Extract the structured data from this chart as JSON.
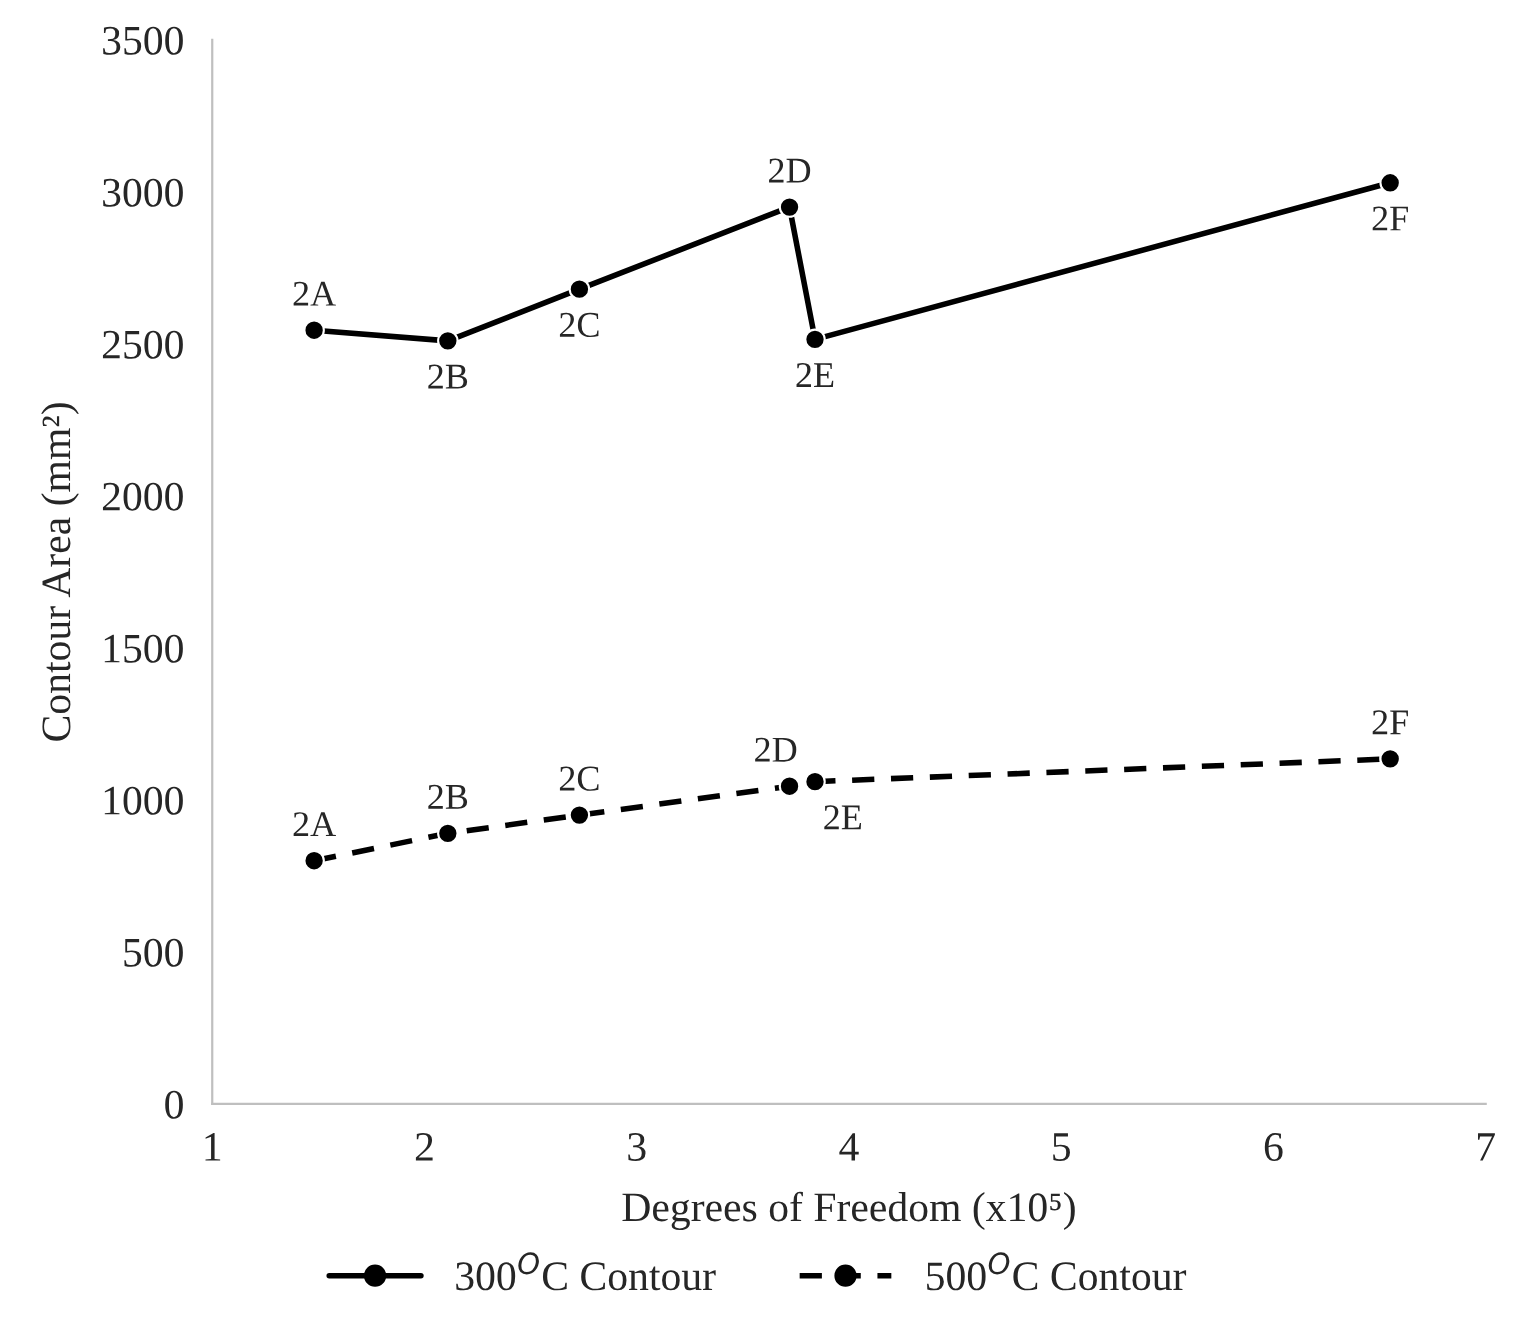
{
  "chart_data": {
    "type": "line",
    "xlabel": "Degrees of Freedom (x10⁵)",
    "ylabel": "Contour Area (mm²)",
    "xlim": [
      1,
      7
    ],
    "xticks": [
      1,
      2,
      3,
      4,
      5,
      6,
      7
    ],
    "ylim": [
      0,
      3500
    ],
    "yticks": [
      0,
      500,
      1000,
      1500,
      2000,
      2500,
      3000,
      3500
    ],
    "grid": false,
    "legend": "bottom",
    "marker": "circle",
    "series": [
      {
        "name": "300$^{O}$C Contour",
        "color": "#000000",
        "line_style": "solid",
        "x": [
          1.48,
          2.11,
          2.73,
          3.72,
          3.84,
          6.55
        ],
        "values": [
          2545,
          2510,
          2680,
          2950,
          2515,
          3030
        ]
      },
      {
        "name": "500$^{O}$C Contour",
        "color": "#000000",
        "line_style": "dashed",
        "x": [
          1.48,
          2.11,
          2.73,
          3.72,
          3.84,
          6.55
        ],
        "values": [
          800,
          890,
          950,
          1045,
          1060,
          1135
        ]
      }
    ],
    "annotations": [
      {
        "text": "2A",
        "x": 1.48,
        "y": 2545
      },
      {
        "text": "2B",
        "x": 2.11,
        "y": 2510
      },
      {
        "text": "2C",
        "x": 2.73,
        "y": 2680
      },
      {
        "text": "2D",
        "x": 3.72,
        "y": 2950
      },
      {
        "text": "2E",
        "x": 3.84,
        "y": 2515
      },
      {
        "text": "2F",
        "x": 6.55,
        "y": 3030
      },
      {
        "text": "2A",
        "x": 1.48,
        "y": 800
      },
      {
        "text": "2B",
        "x": 2.11,
        "y": 890
      },
      {
        "text": "2C",
        "x": 2.73,
        "y": 950
      },
      {
        "text": "2D",
        "x": 3.72,
        "y": 1045
      },
      {
        "text": "2E",
        "x": 3.84,
        "y": 1060
      },
      {
        "text": "2F",
        "x": 6.55,
        "y": 1135
      }
    ]
  }
}
